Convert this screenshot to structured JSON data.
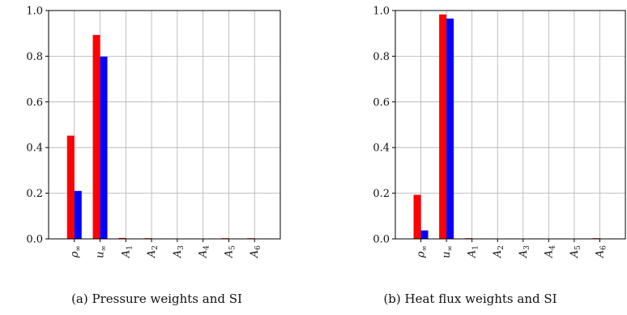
{
  "chart_data": [
    {
      "type": "bar",
      "caption": "(a) Pressure weights and SI",
      "categories": [
        {
          "base": "ρ",
          "sub": "∞"
        },
        {
          "base": "u",
          "sub": "∞"
        },
        {
          "base": "A",
          "sub": "1"
        },
        {
          "base": "A",
          "sub": "2"
        },
        {
          "base": "A",
          "sub": "3"
        },
        {
          "base": "A",
          "sub": "4"
        },
        {
          "base": "A",
          "sub": "5"
        },
        {
          "base": "A",
          "sub": "6"
        }
      ],
      "series": [
        {
          "color": "#ff0000",
          "values": [
            0.452,
            0.893,
            0.004,
            0.003,
            0.0,
            0.0,
            0.003,
            0.003
          ]
        },
        {
          "color": "#0000ff",
          "values": [
            0.21,
            0.798,
            0.0,
            0.0,
            0.0,
            0.0,
            0.0,
            0.0
          ]
        }
      ],
      "ylim": [
        0,
        1.0
      ],
      "yticks": [
        "0.0",
        "0.2",
        "0.4",
        "0.6",
        "0.8",
        "1.0"
      ],
      "grid": true,
      "xlabel": "",
      "ylabel": ""
    },
    {
      "type": "bar",
      "caption": "(b) Heat flux weights and SI",
      "categories": [
        {
          "base": "ρ",
          "sub": "∞"
        },
        {
          "base": "u",
          "sub": "∞"
        },
        {
          "base": "A",
          "sub": "1"
        },
        {
          "base": "A",
          "sub": "2"
        },
        {
          "base": "A",
          "sub": "3"
        },
        {
          "base": "A",
          "sub": "4"
        },
        {
          "base": "A",
          "sub": "5"
        },
        {
          "base": "A",
          "sub": "6"
        }
      ],
      "series": [
        {
          "color": "#ff0000",
          "values": [
            0.193,
            0.983,
            0.003,
            0.0,
            0.0,
            0.0,
            0.0,
            0.003
          ]
        },
        {
          "color": "#0000ff",
          "values": [
            0.037,
            0.965,
            0.0,
            0.0,
            0.0,
            0.0,
            0.0,
            0.0
          ]
        }
      ],
      "ylim": [
        0,
        1.0
      ],
      "yticks": [
        "0.0",
        "0.2",
        "0.4",
        "0.6",
        "0.8",
        "1.0"
      ],
      "grid": true,
      "xlabel": "",
      "ylabel": ""
    }
  ]
}
